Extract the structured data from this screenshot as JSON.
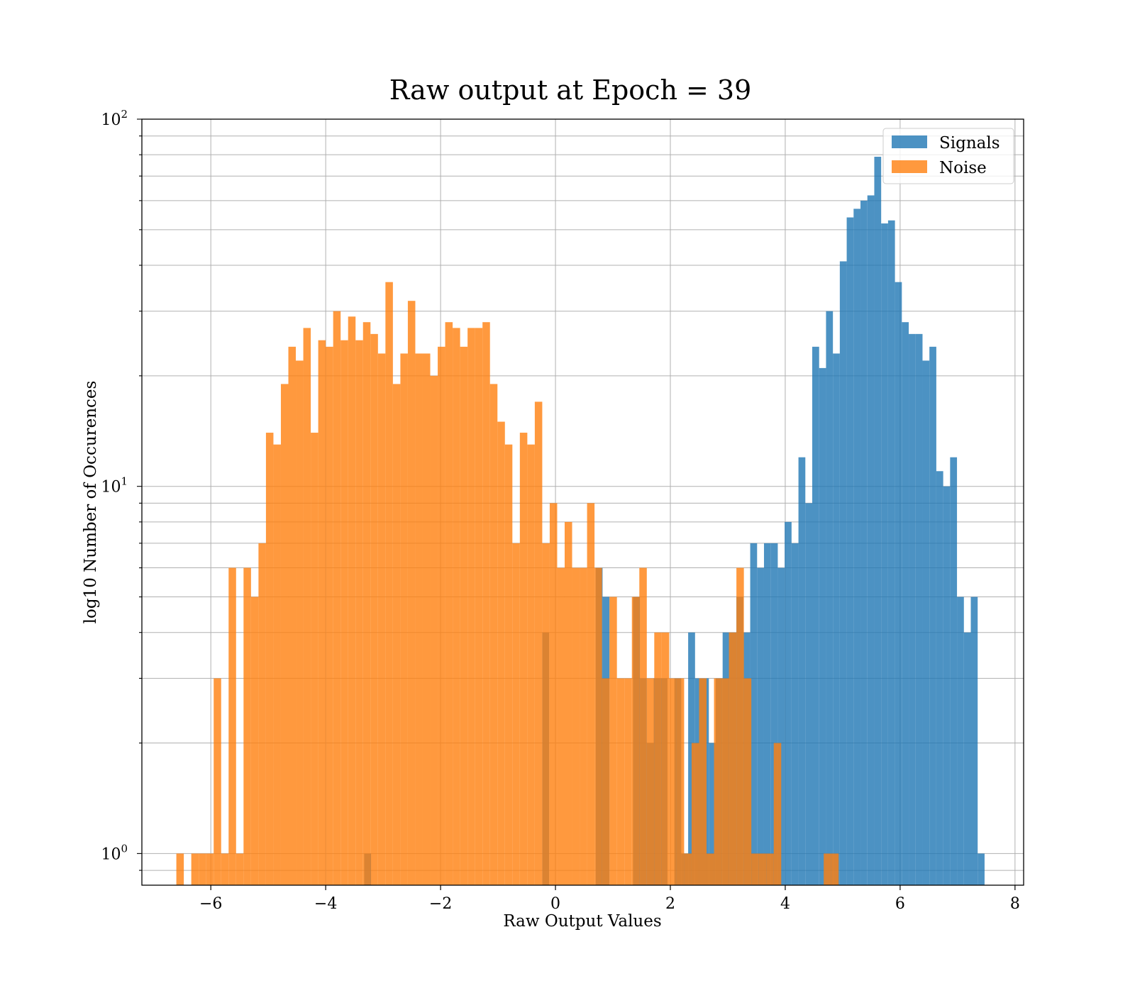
{
  "chart_data": {
    "type": "histogram",
    "title": "Raw output at Epoch = 39",
    "xlabel": "Raw Output Values",
    "ylabel": "log10 Number of Occurences",
    "xlim": [
      -7.2,
      8.15
    ],
    "ylim": [
      0.82,
      100
    ],
    "yscale": "log",
    "grid": true,
    "legend_position": "top-right",
    "x_ticks": [
      -6,
      -4,
      -2,
      0,
      2,
      4,
      6,
      8
    ],
    "x_tick_labels": [
      "−6",
      "−4",
      "−2",
      "0",
      "2",
      "4",
      "6",
      "8"
    ],
    "y_ticks": [
      1,
      10,
      100
    ],
    "y_tick_base": "10",
    "y_tick_exponents": [
      "0",
      "1",
      "2"
    ],
    "series": [
      {
        "name": "Signals",
        "color": "#1f77b4",
        "opacity": 0.8,
        "bins": [
          [
            -3.33,
            -3.21,
            1
          ],
          [
            -0.23,
            -0.11,
            4
          ],
          [
            0.7,
            0.82,
            6
          ],
          [
            0.82,
            0.94,
            5
          ],
          [
            1.35,
            1.47,
            5
          ],
          [
            1.47,
            1.59,
            3
          ],
          [
            1.59,
            1.71,
            2
          ],
          [
            1.71,
            1.83,
            3
          ],
          [
            1.83,
            1.95,
            3
          ],
          [
            2.07,
            2.19,
            3
          ],
          [
            2.19,
            2.31,
            1
          ],
          [
            2.31,
            2.43,
            4
          ],
          [
            2.43,
            2.55,
            3
          ],
          [
            2.55,
            2.67,
            3
          ],
          [
            2.67,
            2.79,
            2
          ],
          [
            2.79,
            2.91,
            3
          ],
          [
            2.91,
            3.03,
            4
          ],
          [
            3.03,
            3.15,
            4
          ],
          [
            3.15,
            3.27,
            5
          ],
          [
            3.27,
            3.39,
            4
          ],
          [
            3.39,
            3.51,
            7
          ],
          [
            3.51,
            3.63,
            6
          ],
          [
            3.63,
            3.75,
            7
          ],
          [
            3.75,
            3.87,
            7
          ],
          [
            3.87,
            3.99,
            6
          ],
          [
            3.99,
            4.11,
            8
          ],
          [
            4.11,
            4.23,
            7
          ],
          [
            4.23,
            4.35,
            12
          ],
          [
            4.35,
            4.47,
            9
          ],
          [
            4.47,
            4.59,
            24
          ],
          [
            4.59,
            4.71,
            21
          ],
          [
            4.71,
            4.83,
            30
          ],
          [
            4.83,
            4.95,
            23
          ],
          [
            4.95,
            5.07,
            41
          ],
          [
            5.07,
            5.19,
            54
          ],
          [
            5.19,
            5.31,
            57
          ],
          [
            5.31,
            5.43,
            60
          ],
          [
            5.43,
            5.55,
            62
          ],
          [
            5.55,
            5.67,
            79
          ],
          [
            5.67,
            5.79,
            52
          ],
          [
            5.79,
            5.91,
            53
          ],
          [
            5.91,
            6.03,
            36
          ],
          [
            6.03,
            6.15,
            28
          ],
          [
            6.15,
            6.27,
            26
          ],
          [
            6.27,
            6.39,
            26
          ],
          [
            6.39,
            6.51,
            22
          ],
          [
            6.51,
            6.63,
            24
          ],
          [
            6.63,
            6.75,
            11
          ],
          [
            6.75,
            6.87,
            10
          ],
          [
            6.87,
            6.99,
            12
          ],
          [
            6.99,
            7.11,
            5
          ],
          [
            7.11,
            7.23,
            4
          ],
          [
            7.23,
            7.35,
            5
          ],
          [
            7.35,
            7.47,
            1
          ]
        ]
      },
      {
        "name": "Noise",
        "color": "#ff7f0e",
        "opacity": 0.8,
        "bins": [
          [
            -6.6,
            -6.47,
            1
          ],
          [
            -6.34,
            -6.21,
            1
          ],
          [
            -6.21,
            -6.08,
            1
          ],
          [
            -6.08,
            -5.95,
            1
          ],
          [
            -5.95,
            -5.82,
            3
          ],
          [
            -5.82,
            -5.69,
            1
          ],
          [
            -5.69,
            -5.56,
            6
          ],
          [
            -5.56,
            -5.43,
            1
          ],
          [
            -5.43,
            -5.3,
            6
          ],
          [
            -5.3,
            -5.17,
            5
          ],
          [
            -5.17,
            -5.04,
            7
          ],
          [
            -5.04,
            -4.91,
            14
          ],
          [
            -4.91,
            -4.78,
            13
          ],
          [
            -4.78,
            -4.65,
            19
          ],
          [
            -4.65,
            -4.52,
            24
          ],
          [
            -4.52,
            -4.39,
            22
          ],
          [
            -4.39,
            -4.26,
            27
          ],
          [
            -4.26,
            -4.13,
            14
          ],
          [
            -4.13,
            -4.0,
            25
          ],
          [
            -4.0,
            -3.87,
            24
          ],
          [
            -3.87,
            -3.74,
            30
          ],
          [
            -3.74,
            -3.61,
            25
          ],
          [
            -3.61,
            -3.48,
            29
          ],
          [
            -3.48,
            -3.35,
            25
          ],
          [
            -3.35,
            -3.22,
            28
          ],
          [
            -3.22,
            -3.09,
            26
          ],
          [
            -3.09,
            -2.96,
            23
          ],
          [
            -2.96,
            -2.83,
            36
          ],
          [
            -2.83,
            -2.7,
            19
          ],
          [
            -2.7,
            -2.57,
            23
          ],
          [
            -2.57,
            -2.44,
            32
          ],
          [
            -2.44,
            -2.31,
            23
          ],
          [
            -2.31,
            -2.18,
            23
          ],
          [
            -2.18,
            -2.05,
            20
          ],
          [
            -2.05,
            -1.92,
            24
          ],
          [
            -1.92,
            -1.79,
            28
          ],
          [
            -1.79,
            -1.66,
            27
          ],
          [
            -1.66,
            -1.53,
            24
          ],
          [
            -1.53,
            -1.4,
            27
          ],
          [
            -1.4,
            -1.27,
            27
          ],
          [
            -1.27,
            -1.14,
            28
          ],
          [
            -1.14,
            -1.01,
            19
          ],
          [
            -1.01,
            -0.88,
            15
          ],
          [
            -0.88,
            -0.75,
            13
          ],
          [
            -0.75,
            -0.62,
            7
          ],
          [
            -0.62,
            -0.49,
            14
          ],
          [
            -0.49,
            -0.36,
            13
          ],
          [
            -0.36,
            -0.23,
            17
          ],
          [
            -0.23,
            -0.1,
            7
          ],
          [
            -0.1,
            0.03,
            9
          ],
          [
            0.03,
            0.16,
            6
          ],
          [
            0.16,
            0.29,
            8
          ],
          [
            0.29,
            0.42,
            6
          ],
          [
            0.42,
            0.55,
            6
          ],
          [
            0.55,
            0.68,
            9
          ],
          [
            0.68,
            0.81,
            6
          ],
          [
            0.81,
            0.94,
            3
          ],
          [
            0.94,
            1.07,
            5
          ],
          [
            1.07,
            1.2,
            3
          ],
          [
            1.2,
            1.33,
            3
          ],
          [
            1.33,
            1.46,
            5
          ],
          [
            1.46,
            1.59,
            6
          ],
          [
            1.59,
            1.72,
            3
          ],
          [
            1.72,
            1.85,
            4
          ],
          [
            1.85,
            1.98,
            4
          ],
          [
            1.98,
            2.11,
            3
          ],
          [
            2.11,
            2.24,
            3
          ],
          [
            2.24,
            2.37,
            1
          ],
          [
            2.37,
            2.5,
            2
          ],
          [
            2.5,
            2.63,
            3
          ],
          [
            2.63,
            2.76,
            1
          ],
          [
            2.76,
            2.89,
            3
          ],
          [
            2.89,
            3.02,
            3
          ],
          [
            3.02,
            3.15,
            4
          ],
          [
            3.15,
            3.28,
            6
          ],
          [
            3.28,
            3.41,
            3
          ],
          [
            3.41,
            3.54,
            1
          ],
          [
            3.54,
            3.67,
            1
          ],
          [
            3.67,
            3.8,
            1
          ],
          [
            3.8,
            3.93,
            2
          ],
          [
            4.67,
            4.8,
            1
          ],
          [
            4.8,
            4.93,
            1
          ]
        ]
      }
    ]
  }
}
